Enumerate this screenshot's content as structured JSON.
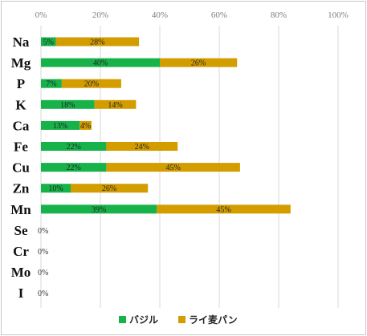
{
  "chart_data": {
    "type": "bar",
    "orientation": "horizontal",
    "stacked": true,
    "categories": [
      "Na",
      "Mg",
      "P",
      "K",
      "Ca",
      "Fe",
      "Cu",
      "Zn",
      "Mn",
      "Se",
      "Cr",
      "Mo",
      "I"
    ],
    "series": [
      {
        "name": "バジル",
        "color": "#17b34a",
        "values": [
          5,
          40,
          7,
          18,
          13,
          22,
          22,
          10,
          39,
          0,
          0,
          0,
          0
        ]
      },
      {
        "name": "ライ麦パン",
        "color": "#d39d00",
        "values": [
          28,
          26,
          20,
          14,
          4,
          24,
          45,
          26,
          45,
          0,
          0,
          0,
          0
        ]
      }
    ],
    "xlim": [
      0,
      100
    ],
    "x_ticks": [
      "0%",
      "20%",
      "40%",
      "60%",
      "80%",
      "100%"
    ],
    "x_axis_position": "top",
    "grid": true,
    "legend_position": "bottom",
    "title": "",
    "xlabel": "",
    "ylabel": ""
  }
}
